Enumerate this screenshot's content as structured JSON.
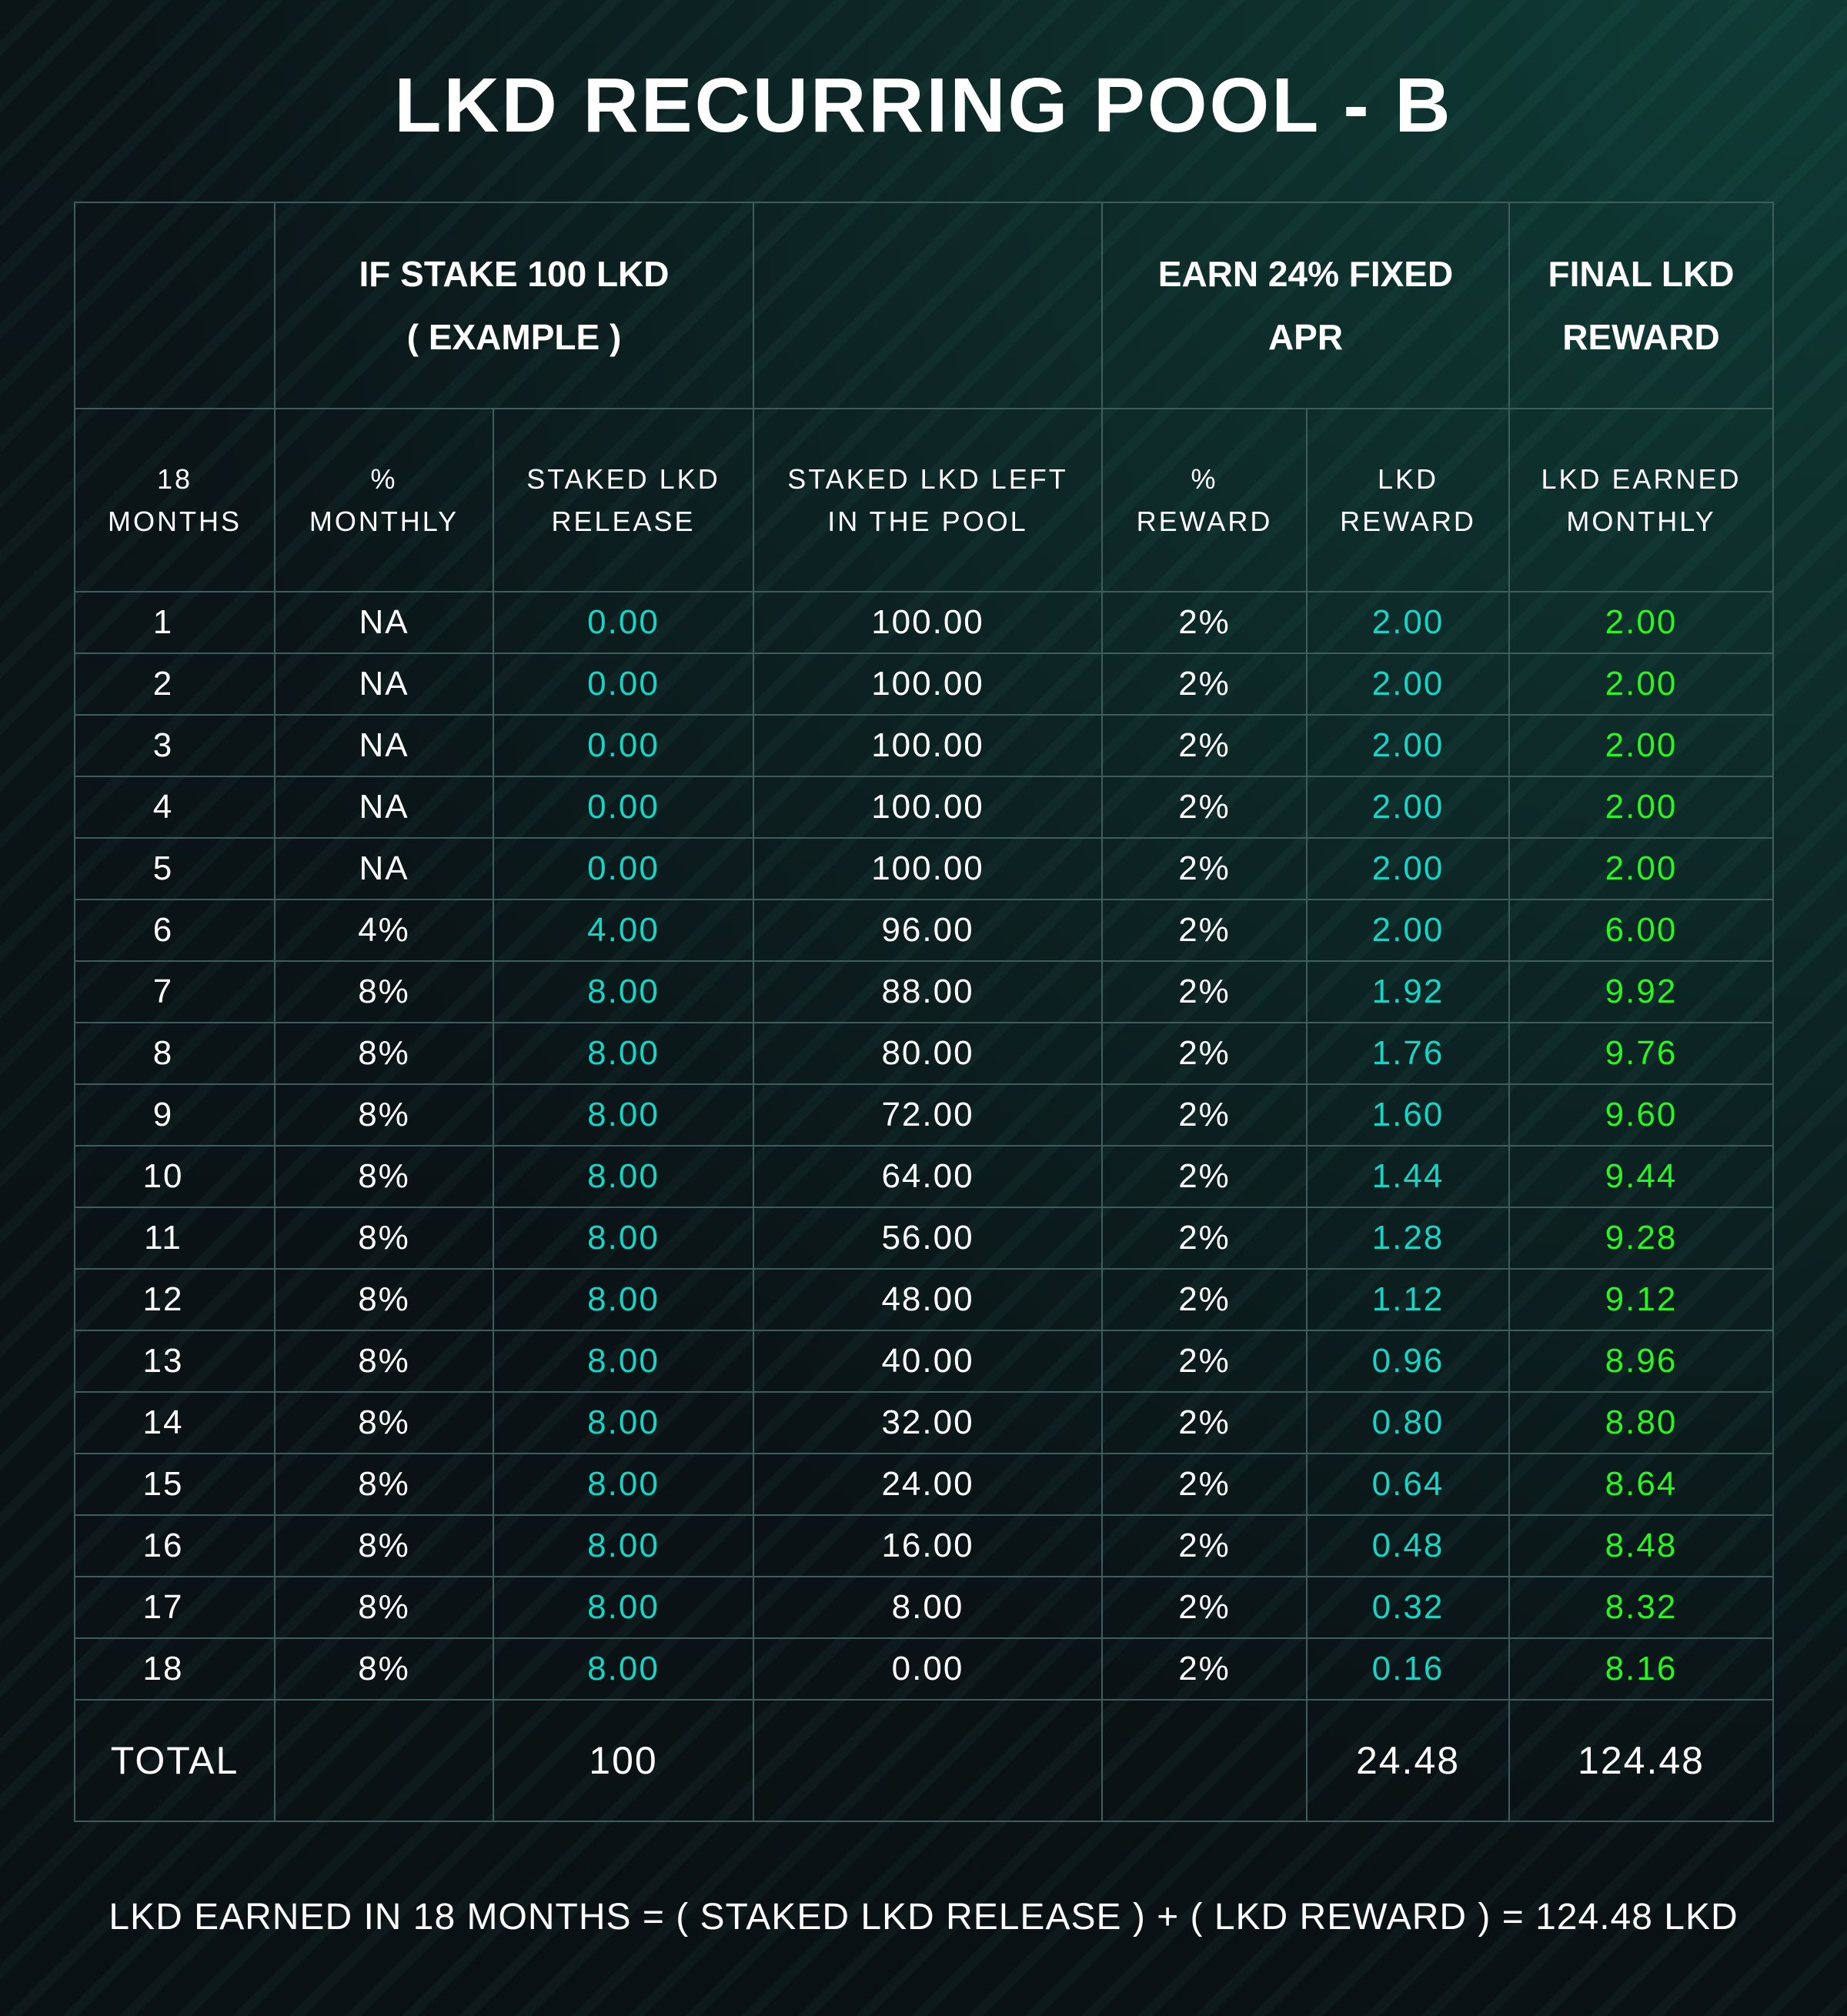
{
  "title": "LKD RECURRING POOL - B",
  "group_headers": {
    "stake_example_line1": "IF STAKE 100 LKD",
    "stake_example_line2": "( EXAMPLE )",
    "apr_line1": "EARN 24% FIXED",
    "apr_line2": "APR",
    "final_line1": "FINAL LKD",
    "final_line2": "REWARD"
  },
  "column_headers": [
    {
      "line1": "18",
      "line2": "MONTHS"
    },
    {
      "line1": "%",
      "line2": "MONTHLY"
    },
    {
      "line1": "STAKED LKD",
      "line2": "RELEASE"
    },
    {
      "line1": "STAKED LKD LEFT",
      "line2": "IN THE POOL"
    },
    {
      "line1": "%",
      "line2": "REWARD"
    },
    {
      "line1": "LKD",
      "line2": "REWARD"
    },
    {
      "line1": "LKD EARNED",
      "line2": "MONTHLY"
    }
  ],
  "rows": [
    {
      "month": "1",
      "monthly_pct": "NA",
      "release": "0.00",
      "left": "100.00",
      "reward_pct": "2%",
      "reward": "2.00",
      "earned": "2.00"
    },
    {
      "month": "2",
      "monthly_pct": "NA",
      "release": "0.00",
      "left": "100.00",
      "reward_pct": "2%",
      "reward": "2.00",
      "earned": "2.00"
    },
    {
      "month": "3",
      "monthly_pct": "NA",
      "release": "0.00",
      "left": "100.00",
      "reward_pct": "2%",
      "reward": "2.00",
      "earned": "2.00"
    },
    {
      "month": "4",
      "monthly_pct": "NA",
      "release": "0.00",
      "left": "100.00",
      "reward_pct": "2%",
      "reward": "2.00",
      "earned": "2.00"
    },
    {
      "month": "5",
      "monthly_pct": "NA",
      "release": "0.00",
      "left": "100.00",
      "reward_pct": "2%",
      "reward": "2.00",
      "earned": "2.00"
    },
    {
      "month": "6",
      "monthly_pct": "4%",
      "release": "4.00",
      "left": "96.00",
      "reward_pct": "2%",
      "reward": "2.00",
      "earned": "6.00"
    },
    {
      "month": "7",
      "monthly_pct": "8%",
      "release": "8.00",
      "left": "88.00",
      "reward_pct": "2%",
      "reward": "1.92",
      "earned": "9.92"
    },
    {
      "month": "8",
      "monthly_pct": "8%",
      "release": "8.00",
      "left": "80.00",
      "reward_pct": "2%",
      "reward": "1.76",
      "earned": "9.76"
    },
    {
      "month": "9",
      "monthly_pct": "8%",
      "release": "8.00",
      "left": "72.00",
      "reward_pct": "2%",
      "reward": "1.60",
      "earned": "9.60"
    },
    {
      "month": "10",
      "monthly_pct": "8%",
      "release": "8.00",
      "left": "64.00",
      "reward_pct": "2%",
      "reward": "1.44",
      "earned": "9.44"
    },
    {
      "month": "11",
      "monthly_pct": "8%",
      "release": "8.00",
      "left": "56.00",
      "reward_pct": "2%",
      "reward": "1.28",
      "earned": "9.28"
    },
    {
      "month": "12",
      "monthly_pct": "8%",
      "release": "8.00",
      "left": "48.00",
      "reward_pct": "2%",
      "reward": "1.12",
      "earned": "9.12"
    },
    {
      "month": "13",
      "monthly_pct": "8%",
      "release": "8.00",
      "left": "40.00",
      "reward_pct": "2%",
      "reward": "0.96",
      "earned": "8.96"
    },
    {
      "month": "14",
      "monthly_pct": "8%",
      "release": "8.00",
      "left": "32.00",
      "reward_pct": "2%",
      "reward": "0.80",
      "earned": "8.80"
    },
    {
      "month": "15",
      "monthly_pct": "8%",
      "release": "8.00",
      "left": "24.00",
      "reward_pct": "2%",
      "reward": "0.64",
      "earned": "8.64"
    },
    {
      "month": "16",
      "monthly_pct": "8%",
      "release": "8.00",
      "left": "16.00",
      "reward_pct": "2%",
      "reward": "0.48",
      "earned": "8.48"
    },
    {
      "month": "17",
      "monthly_pct": "8%",
      "release": "8.00",
      "left": "8.00",
      "reward_pct": "2%",
      "reward": "0.32",
      "earned": "8.32"
    },
    {
      "month": "18",
      "monthly_pct": "8%",
      "release": "8.00",
      "left": "0.00",
      "reward_pct": "2%",
      "reward": "0.16",
      "earned": "8.16"
    }
  ],
  "total": {
    "label": "TOTAL",
    "release": "100",
    "reward": "24.48",
    "earned": "124.48"
  },
  "footer": "LKD EARNED IN 18 MONTHS = ( STAKED LKD RELEASE ) + ( LKD REWARD ) = 124.48 LKD",
  "colors": {
    "teal_values": "#19d3c5",
    "green_values": "#2cf321",
    "grid_lines": "#3f5e5b",
    "background": "#0b1518"
  }
}
